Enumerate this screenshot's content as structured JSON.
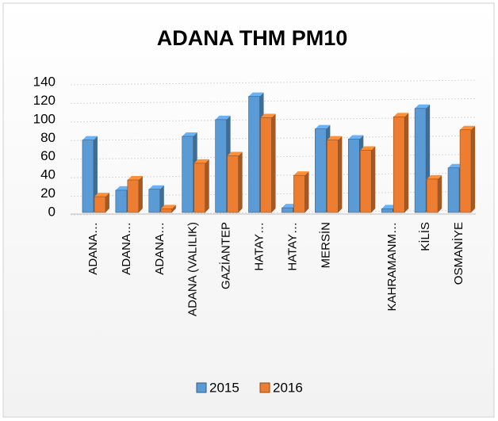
{
  "chart_data": {
    "type": "bar",
    "title": "ADANA THM PM10",
    "categories": [
      "ADANA…",
      "ADANA…",
      "ADANA…",
      "ADANA (VALILIK)",
      "GAZİANTEP",
      "HATAY…",
      "HATAY…",
      "MERSİN",
      null,
      "KAHRAMANM…",
      "KİLİS",
      "OSMANİYE"
    ],
    "series": [
      {
        "name": "2015",
        "color": "#5b9bd5",
        "values": [
          78,
          24,
          25,
          82,
          100,
          125,
          5,
          90,
          79,
          4,
          112,
          48
        ]
      },
      {
        "name": "2016",
        "color": "#ed7d31",
        "values": [
          17,
          35,
          4,
          53,
          61,
          102,
          40,
          78,
          67,
          103,
          36,
          89
        ]
      }
    ],
    "ylim": [
      0,
      140
    ],
    "yticks": [
      0,
      20,
      40,
      60,
      80,
      100,
      120,
      140
    ],
    "grid": true,
    "legend": "bottom"
  }
}
